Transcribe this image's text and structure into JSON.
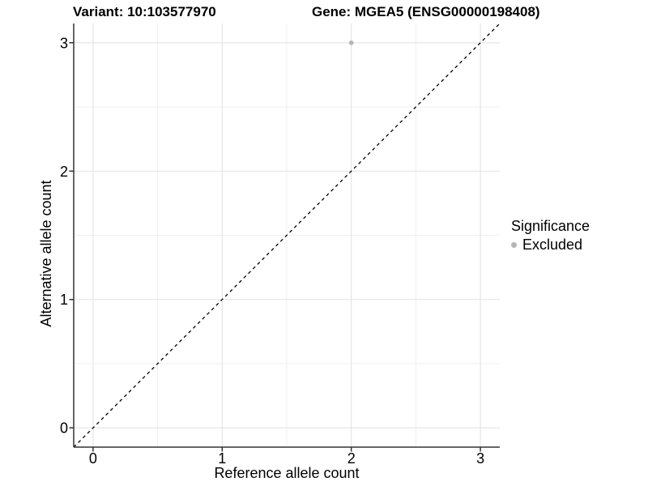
{
  "title": {
    "variant": "Variant: 10:103577970",
    "gene": "Gene: MGEA5 (ENSG00000198408)"
  },
  "chart_data": {
    "type": "scatter",
    "title_left": "Variant: 10:103577970",
    "title_right": "Gene: MGEA5 (ENSG00000198408)",
    "xlabel": "Reference allele count",
    "ylabel": "Alternative allele count",
    "xlim": [
      -0.15,
      3.15
    ],
    "ylim": [
      -0.15,
      3.15
    ],
    "x_ticks": [
      0,
      1,
      2,
      3
    ],
    "y_ticks": [
      0,
      1,
      2,
      3
    ],
    "x_minor_ticks": [
      0.5,
      1.5,
      2.5
    ],
    "y_minor_ticks": [
      0.5,
      1.5,
      2.5
    ],
    "grid": "on",
    "identity_line": {
      "slope": 1,
      "intercept": 0,
      "style": "dashed",
      "color": "#000000"
    },
    "series": [
      {
        "name": "Excluded",
        "color": "#b4b4b4",
        "points": [
          [
            2,
            3
          ]
        ]
      }
    ],
    "legend": {
      "title": "Significance",
      "position": "right",
      "items": [
        {
          "label": "Excluded",
          "color": "#b4b4b4",
          "marker": "circle"
        }
      ]
    },
    "colors": {
      "grid_major": "#e3e3e3",
      "grid_minor": "#efefef",
      "axis_line": "#333333",
      "point": "#b4b4b4"
    }
  }
}
